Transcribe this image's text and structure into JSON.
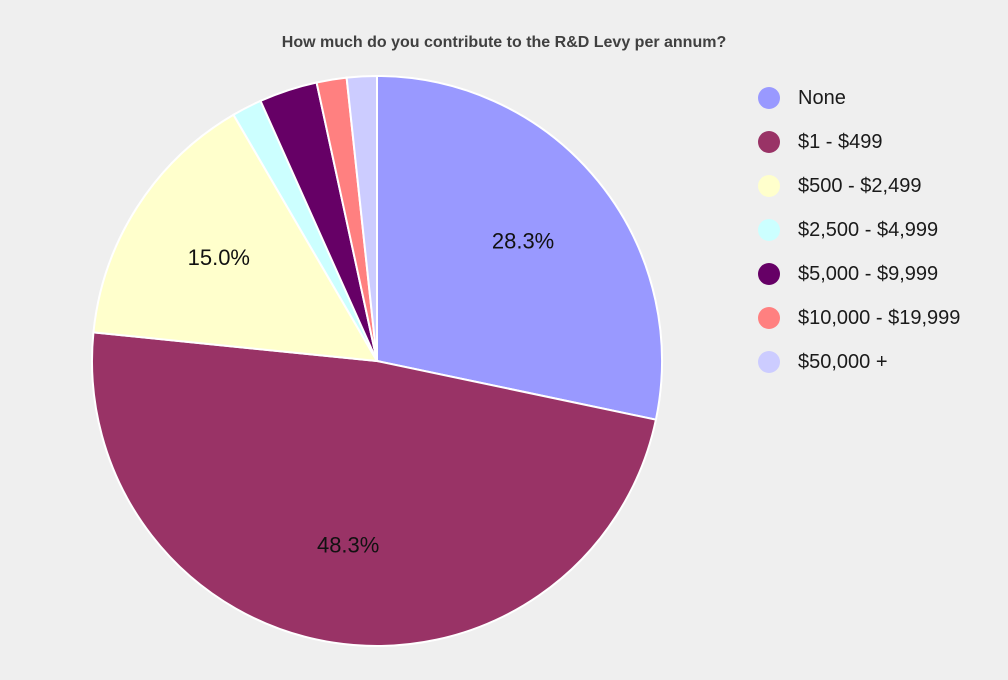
{
  "chart_data": {
    "type": "pie",
    "title": "How much do you contribute to the R&D Levy per annum?",
    "categories": [
      "None",
      "$1 - $499",
      "$500 - $2,499",
      "$2,500 - $4,999",
      "$5,000 - $9,999",
      "$10,000 - $19,999",
      "$50,000 +"
    ],
    "values": [
      28.3,
      48.3,
      15.0,
      1.7,
      3.3,
      1.7,
      1.7
    ],
    "data_labels": [
      "28.3%",
      "48.3%",
      "15.0%",
      "",
      "",
      "",
      ""
    ],
    "colors": [
      "#9999ff",
      "#993366",
      "#ffffcc",
      "#ccffff",
      "#660066",
      "#ff8080",
      "#ccccff"
    ],
    "legend": "right",
    "start_angle_deg": 0,
    "direction": "clockwise"
  }
}
